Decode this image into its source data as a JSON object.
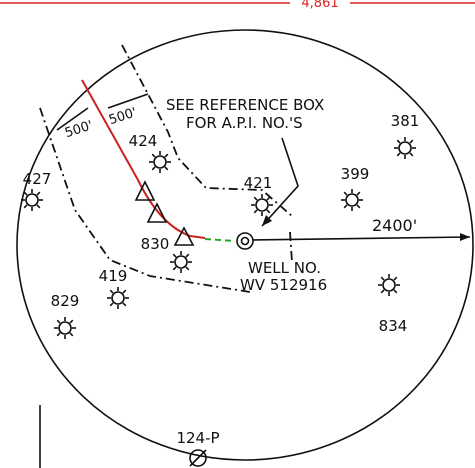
{
  "top_dimension": "4,861",
  "buffer_labels": [
    "500'",
    "500'"
  ],
  "note": [
    "SEE REFERENCE BOX",
    "FOR A.P.I. NO.'S"
  ],
  "radius_label": "2400'",
  "well": {
    "label": "WELL NO.",
    "number": "WV 512916"
  },
  "offset_wells": [
    {
      "label": "381"
    },
    {
      "label": "424"
    },
    {
      "label": "427"
    },
    {
      "label": "421"
    },
    {
      "label": "399"
    },
    {
      "label": "830"
    },
    {
      "label": "419"
    },
    {
      "label": "829"
    },
    {
      "label": "834"
    }
  ],
  "plugged_well": {
    "label": "124-P"
  }
}
